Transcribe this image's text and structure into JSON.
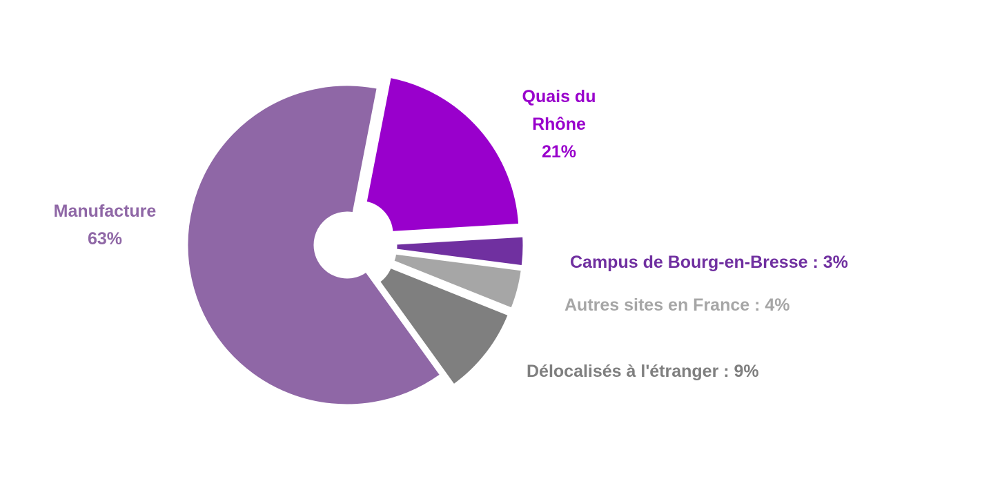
{
  "chart_data": {
    "type": "pie",
    "style": "donut-exploded",
    "slices": [
      {
        "name": "Quais du Rhône",
        "value": 21,
        "color": "#9900CC",
        "label_lines": [
          "Quais du",
          "Rhône",
          "21%"
        ]
      },
      {
        "name": "Campus de Bourg-en-Bresse",
        "value": 3,
        "color": "#7030A0",
        "label_lines": [
          "Campus de Bourg-en-Bresse : 3%"
        ]
      },
      {
        "name": "Autres sites en France",
        "value": 4,
        "color": "#A6A6A6",
        "label_lines": [
          "Autres sites en France : 4%"
        ]
      },
      {
        "name": "Délocalisés à l'étranger",
        "value": 9,
        "color": "#7F7F7F",
        "label_lines": [
          "Délocalisés à l'étranger : 9%"
        ]
      },
      {
        "name": "Manufacture",
        "value": 63,
        "color": "#8F67A6",
        "label_lines": [
          "Manufacture",
          "63%"
        ]
      }
    ],
    "legend": "none"
  }
}
